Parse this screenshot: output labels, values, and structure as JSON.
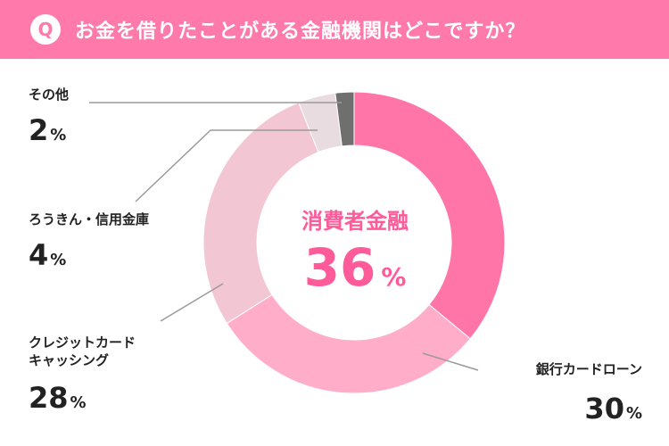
{
  "header": {
    "badge": "Q",
    "question": "お金を借りたことがある金融機関はどこですか？",
    "background": "#ff79aa"
  },
  "center": {
    "label": "消費者金融",
    "value": "36",
    "unit": "%",
    "color": "#ff5a9a"
  },
  "chart_data": {
    "type": "pie",
    "title": "お金を借りたことがある金融機関はどこですか？",
    "unit": "%",
    "slices": [
      {
        "label": "消費者金融",
        "value": 36,
        "color": "#ff75a8"
      },
      {
        "label": "銀行カードローン",
        "value": 30,
        "color": "#ffadc9"
      },
      {
        "label": "クレジットカードキャッシング",
        "value": 28,
        "color": "#f3c6d4"
      },
      {
        "label": "ろうきん・信用金庫",
        "value": 4,
        "color": "#e9dce1"
      },
      {
        "label": "その他",
        "value": 2,
        "color": "#6f6f6f"
      }
    ]
  },
  "labels": {
    "other": {
      "name": "その他",
      "pct": "2"
    },
    "rokin": {
      "name": "ろうきん・信用金庫",
      "pct": "4"
    },
    "credit": {
      "name_line1": "クレジットカード",
      "name_line2": "キャッシング",
      "pct": "28"
    },
    "bank": {
      "name": "銀行カードローン",
      "pct": "30"
    },
    "unit": "%"
  }
}
